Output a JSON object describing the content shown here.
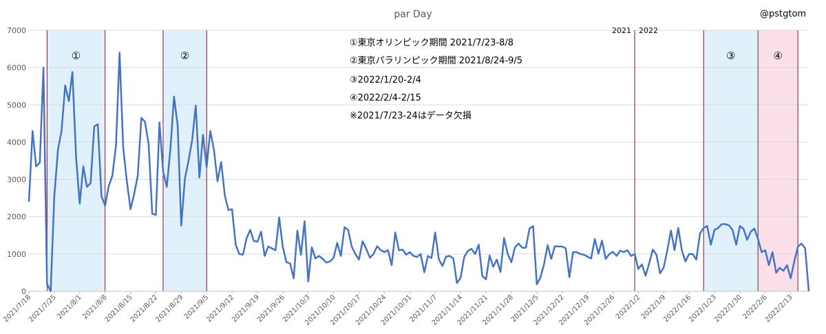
{
  "chart_data": {
    "type": "line",
    "title": "par Day",
    "xlabel": "",
    "ylabel": "",
    "ylim": [
      0,
      7000
    ],
    "yticks": [
      "0",
      "1000",
      "2000",
      "3000",
      "4000",
      "5000",
      "6000",
      "7000"
    ],
    "grid": true,
    "legend": "none",
    "x_start": "2021/7/18",
    "x_end": "2022/2/18",
    "xticks": [
      "2021/7/18",
      "2021/7/25",
      "2021/8/1",
      "2021/8/8",
      "2021/8/15",
      "2021/8/22",
      "2021/8/29",
      "2021/9/5",
      "2021/9/12",
      "2021/9/19",
      "2021/9/26",
      "2021/10/3",
      "2021/10/10",
      "2021/10/17",
      "2021/10/24",
      "2021/10/31",
      "2021/11/7",
      "2021/11/14",
      "2021/11/21",
      "2021/11/28",
      "2021/12/5",
      "2021/12/12",
      "2021/12/19",
      "2021/12/26",
      "2022/1/2",
      "2022/1/9",
      "2022/1/16",
      "2022/1/23",
      "2022/1/30",
      "2022/2/6",
      "2022/2/13"
    ],
    "series": [
      {
        "color": "#4472c4",
        "values": [
          2400,
          4300,
          3350,
          3450,
          6000,
          200,
          0,
          2550,
          3800,
          4300,
          5520,
          5100,
          5880,
          3600,
          2350,
          3350,
          2800,
          2900,
          4420,
          4480,
          2550,
          2300,
          2820,
          3100,
          3900,
          6400,
          3850,
          2950,
          2200,
          2600,
          3100,
          4650,
          4550,
          3950,
          2080,
          2050,
          4530,
          3200,
          2800,
          3800,
          5220,
          4450,
          1760,
          3020,
          3500,
          4050,
          4980,
          3050,
          4200,
          3330,
          4300,
          3800,
          2950,
          3470,
          2570,
          2180,
          2200,
          1250,
          1000,
          980,
          1420,
          1650,
          1350,
          1330,
          1600,
          950,
          1200,
          1150,
          1100,
          1980,
          1180,
          780,
          750,
          350,
          1630,
          980,
          1880,
          260,
          1180,
          880,
          950,
          870,
          770,
          800,
          900,
          1300,
          950,
          1720,
          1650,
          1200,
          1000,
          850,
          1340,
          1140,
          900,
          1000,
          1210,
          1100,
          1050,
          1100,
          700,
          1580,
          1100,
          1120,
          980,
          1050,
          950,
          920,
          1000,
          510,
          950,
          890,
          1580,
          860,
          680,
          930,
          950,
          880,
          220,
          360,
          920,
          1080,
          1140,
          1000,
          1250,
          410,
          320,
          960,
          660,
          850,
          520,
          1430,
          1000,
          780,
          1180,
          1280,
          1170,
          1170,
          1680,
          1750,
          190,
          360,
          720,
          1240,
          870,
          1210,
          1200,
          1200,
          1150,
          380,
          1050,
          1050,
          1000,
          980,
          930,
          880,
          1400,
          1010,
          1360,
          870,
          1000,
          1060,
          950,
          1090,
          1050,
          1100,
          950,
          1000,
          600,
          720,
          420,
          750,
          1120,
          980,
          480,
          640,
          1100,
          1630,
          1100,
          1700,
          1100,
          800,
          1000,
          1000,
          850,
          1550,
          1700,
          1750,
          1250,
          1650,
          1700,
          1800,
          1800,
          1770,
          1640,
          1250,
          1750,
          1680,
          1380,
          1600,
          1680,
          1400,
          1050,
          1100,
          700,
          1050,
          500,
          630,
          550,
          700,
          350,
          800,
          1200,
          1280,
          1150,
          0
        ]
      }
    ],
    "periods": [
      {
        "label": "①",
        "start": "2021/7/23",
        "end": "2021/8/8",
        "color": "#e0f1fb"
      },
      {
        "label": "②",
        "start": "2021/8/24",
        "end": "2021/9/5",
        "color": "#e0f1fb"
      },
      {
        "label": "③",
        "start": "2022/1/20",
        "end": "2022/2/4",
        "color": "#e0f1fb"
      },
      {
        "label": "④",
        "start": "2022/2/4",
        "end": "2022/2/15",
        "color": "#fbe0ea"
      }
    ],
    "year_divider": {
      "left_label": "2021",
      "right_label": "2022"
    },
    "annotations": [
      "①東京オリンピック期間  2021/7/23-8/8",
      "②東京パラリンピック期間    2021/8/24-9/5",
      "③2022/1/20-2/4",
      "④2022/2/4-2/15",
      "※2021/7/23-24はデータ欠損"
    ],
    "author": "@pstgtom"
  }
}
